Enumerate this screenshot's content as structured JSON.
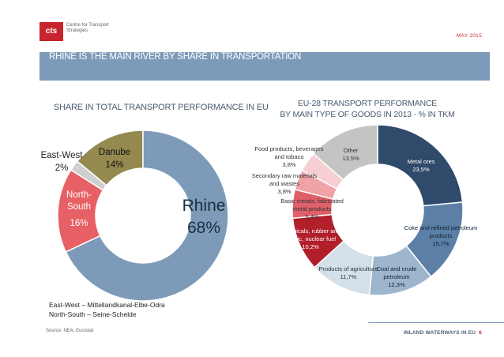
{
  "header": {
    "logo_mark": "cts",
    "logo_text": "Centre for Transport Strategies",
    "date": "MAY 2015"
  },
  "banner": {
    "title": "RHINE IS THE MAIN RIVER BY SHARE IN TRANSPORTATION"
  },
  "left_heading": "SHARE IN TOTAL TRANSPORT PERFORMANCE IN EU",
  "right_heading_line1": "EU-28 TRANSPORT PERFORMANCE",
  "right_heading_line2": "BY MAIN TYPE OF GOODS IN 2013 - % IN TKM",
  "legend_note": {
    "line1": "East-West – Mittellandkanal-Elbe-Odra",
    "line2": "North-South –  Seine-Schelde"
  },
  "footer": {
    "source": "Source: NEA, Eurostat",
    "section": "INLAND WATERWAYS IN EU",
    "page": "6"
  },
  "chart_data": [
    {
      "type": "pie",
      "title": "SHARE IN TOTAL TRANSPORT PERFORMANCE IN EU",
      "slices": [
        {
          "label": "Rhine",
          "value": 68,
          "display": "68%",
          "color": "#7d9bb9"
        },
        {
          "label": "North-South",
          "value": 16,
          "display": "16%",
          "color": "#e66065"
        },
        {
          "label": "East-West",
          "value": 2,
          "display": "2%",
          "color": "#cfcfcf"
        },
        {
          "label": "Danube",
          "value": 14,
          "display": "14%",
          "color": "#948a4f"
        }
      ]
    },
    {
      "type": "pie",
      "title": "EU-28 TRANSPORT PERFORMANCE BY MAIN TYPE OF GOODS IN 2013 - % IN TKM",
      "slices": [
        {
          "label": "Metal ores",
          "value": 23.5,
          "display": "23,5%",
          "color": "#2f4a6b"
        },
        {
          "label": "Coke and refined petroleum products",
          "value": 15.7,
          "display": "15,7%",
          "color": "#5c7fa6"
        },
        {
          "label": "Coal and crude petroleum",
          "value": 12.3,
          "display": "12,3%",
          "color": "#9db5cd"
        },
        {
          "label": "Products of agriculture",
          "value": 11.7,
          "display": "11,7%",
          "color": "#d3dfe9"
        },
        {
          "label": "Chemicals, rubber and plastic, nuclear fuel",
          "value": 10.2,
          "display": "10,2%",
          "color": "#b01f2a"
        },
        {
          "label": "Basic metals; fabricated metal products",
          "value": 5.4,
          "display": "5,4%",
          "color": "#e0606a"
        },
        {
          "label": "Secondary raw materials and wastes",
          "value": 3.8,
          "display": "3,8%",
          "color": "#f0a2a7"
        },
        {
          "label": "Food products, beverages and tobaco",
          "value": 3.8,
          "display": "3,8%",
          "color": "#f7cfd2"
        },
        {
          "label": "Other",
          "value": 13.5,
          "display": "13,5%",
          "color": "#c4c4c4"
        }
      ]
    }
  ]
}
